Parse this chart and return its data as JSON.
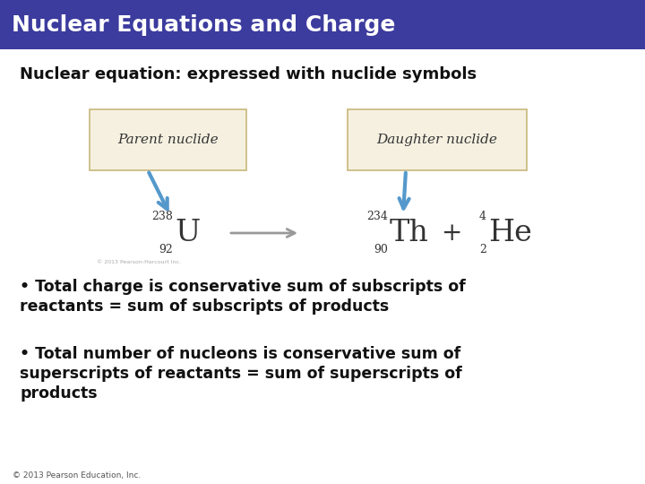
{
  "title": "Nuclear Equations and Charge",
  "title_bg_color": "#3c3b9e",
  "title_text_color": "#ffffff",
  "slide_bg_color": "#ffffff",
  "subtitle": "Nuclear equation: expressed with nuclide symbols",
  "bullet1_line1": "• Total charge is conservative sum of subscripts of",
  "bullet1_line2": "reactants = sum of subscripts of products",
  "bullet2_line1": "• Total number of nucleons is conservative sum of",
  "bullet2_line2": "superscripts of reactants = sum of superscripts of",
  "bullet2_line3": "products",
  "footer": "© 2013 Pearson Education, Inc.",
  "parent_label": "Parent nuclide",
  "daughter_label": "Daughter nuclide",
  "box_bg_color": "#f5f0e0",
  "box_edge_color": "#c8b87a",
  "arrow_color": "#5599cc",
  "eqn_arrow_color": "#999999",
  "nuclide_color": "#333333",
  "text_color": "#111111"
}
